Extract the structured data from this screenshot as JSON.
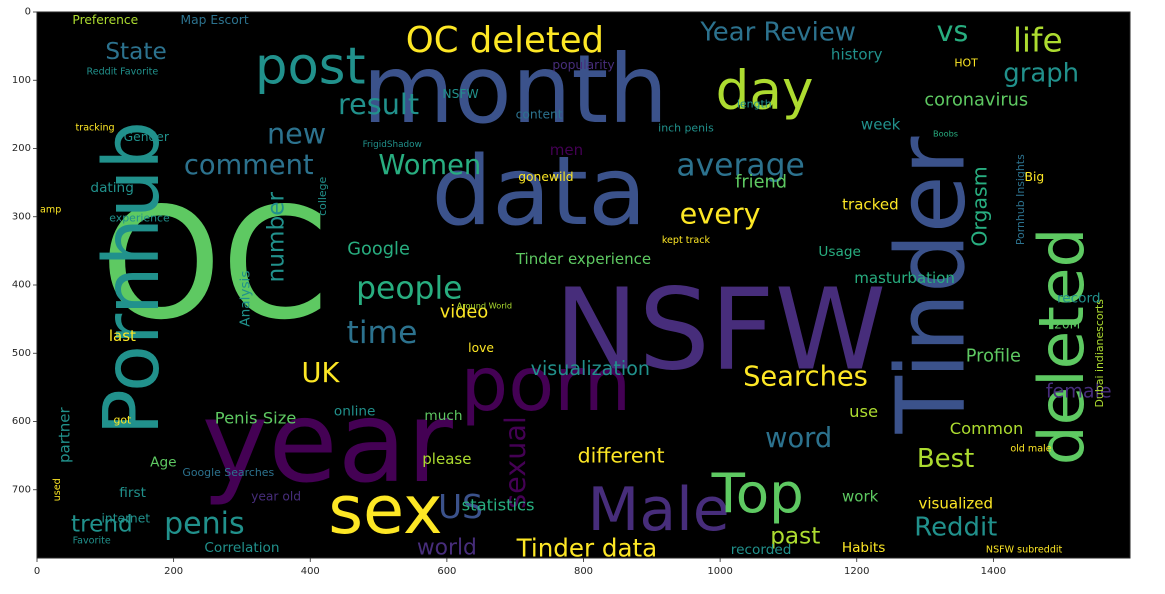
{
  "chart_data": {
    "type": "wordcloud-image",
    "title": "",
    "xlabel": "",
    "ylabel": "",
    "xlim": [
      0,
      1600
    ],
    "ylim": [
      800,
      0
    ],
    "xticks": [
      0,
      200,
      400,
      600,
      800,
      1000,
      1200,
      1400
    ],
    "yticks": [
      0,
      100,
      200,
      300,
      400,
      500,
      600,
      700
    ],
    "grid": false,
    "background": "#000000",
    "palette": [
      "#440154",
      "#472d7b",
      "#3b528b",
      "#2c728e",
      "#21918c",
      "#28ae80",
      "#5ec962",
      "#addc30",
      "#fde725"
    ],
    "words": [
      {
        "text": "OC",
        "x": 260,
        "y": 370,
        "size": 225,
        "color": "#5ec962",
        "rotate": 0
      },
      {
        "text": "year",
        "x": 425,
        "y": 630,
        "size": 165,
        "color": "#440154",
        "rotate": 0
      },
      {
        "text": "NSFW",
        "x": 1000,
        "y": 465,
        "size": 165,
        "color": "#472d7b",
        "rotate": 0
      },
      {
        "text": "Tinder",
        "x": 1310,
        "y": 400,
        "size": 138,
        "color": "#3b528b",
        "rotate": -90
      },
      {
        "text": "month",
        "x": 700,
        "y": 115,
        "size": 138,
        "color": "#3b528b",
        "rotate": 0
      },
      {
        "text": "data",
        "x": 735,
        "y": 262,
        "size": 140,
        "color": "#3b528b",
        "rotate": 0
      },
      {
        "text": "Pornhub",
        "x": 140,
        "y": 390,
        "size": 112,
        "color": "#21918c",
        "rotate": -90
      },
      {
        "text": "deleted",
        "x": 1500,
        "y": 490,
        "size": 92,
        "color": "#5ec962",
        "rotate": -90
      },
      {
        "text": "porn",
        "x": 745,
        "y": 545,
        "size": 110,
        "color": "#440154",
        "rotate": 0
      },
      {
        "text": "Male",
        "x": 910,
        "y": 730,
        "size": 88,
        "color": "#472d7b",
        "rotate": 0
      },
      {
        "text": "sex",
        "x": 510,
        "y": 730,
        "size": 98,
        "color": "#fde725",
        "rotate": 0
      },
      {
        "text": "post",
        "x": 400,
        "y": 80,
        "size": 75,
        "color": "#21918c",
        "rotate": 0
      },
      {
        "text": "day",
        "x": 1065,
        "y": 115,
        "size": 78,
        "color": "#addc30",
        "rotate": 0
      },
      {
        "text": "Top",
        "x": 1055,
        "y": 705,
        "size": 80,
        "color": "#5ec962",
        "rotate": 0
      },
      {
        "text": "OC deleted",
        "x": 685,
        "y": 42,
        "size": 52,
        "color": "#fde725",
        "rotate": 0
      },
      {
        "text": "Year Review",
        "x": 1085,
        "y": 30,
        "size": 38,
        "color": "#2c728e",
        "rotate": 0
      },
      {
        "text": "vs",
        "x": 1340,
        "y": 28,
        "size": 42,
        "color": "#28ae80",
        "rotate": 0
      },
      {
        "text": "life",
        "x": 1465,
        "y": 42,
        "size": 48,
        "color": "#addc30",
        "rotate": 0
      },
      {
        "text": "graph",
        "x": 1470,
        "y": 90,
        "size": 38,
        "color": "#21918c",
        "rotate": 0
      },
      {
        "text": "result",
        "x": 500,
        "y": 135,
        "size": 42,
        "color": "#21918c",
        "rotate": 0
      },
      {
        "text": "new",
        "x": 380,
        "y": 178,
        "size": 42,
        "color": "#2c728e",
        "rotate": 0
      },
      {
        "text": "State",
        "x": 145,
        "y": 58,
        "size": 34,
        "color": "#2c728e",
        "rotate": 0
      },
      {
        "text": "average",
        "x": 1030,
        "y": 225,
        "size": 46,
        "color": "#2c728e",
        "rotate": 0
      },
      {
        "text": "comment",
        "x": 310,
        "y": 225,
        "size": 40,
        "color": "#2c728e",
        "rotate": 0
      },
      {
        "text": "Women",
        "x": 575,
        "y": 225,
        "size": 40,
        "color": "#28ae80",
        "rotate": 0
      },
      {
        "text": "every",
        "x": 1000,
        "y": 295,
        "size": 42,
        "color": "#fde725",
        "rotate": 0
      },
      {
        "text": "people",
        "x": 545,
        "y": 405,
        "size": 46,
        "color": "#28ae80",
        "rotate": 0
      },
      {
        "text": "time",
        "x": 505,
        "y": 470,
        "size": 46,
        "color": "#2c728e",
        "rotate": 0
      },
      {
        "text": "number",
        "x": 350,
        "y": 330,
        "size": 34,
        "color": "#21918c",
        "rotate": -90
      },
      {
        "text": "Searches",
        "x": 1125,
        "y": 535,
        "size": 40,
        "color": "#fde725",
        "rotate": 0
      },
      {
        "text": "visualization",
        "x": 810,
        "y": 522,
        "size": 28,
        "color": "#21918c",
        "rotate": 0
      },
      {
        "text": "UK",
        "x": 415,
        "y": 530,
        "size": 40,
        "color": "#fde725",
        "rotate": 0
      },
      {
        "text": "sexual",
        "x": 700,
        "y": 660,
        "size": 42,
        "color": "#440154",
        "rotate": -90
      },
      {
        "text": "word",
        "x": 1115,
        "y": 625,
        "size": 40,
        "color": "#2c728e",
        "rotate": 0
      },
      {
        "text": "Best",
        "x": 1330,
        "y": 655,
        "size": 38,
        "color": "#addc30",
        "rotate": 0
      },
      {
        "text": "penis",
        "x": 245,
        "y": 750,
        "size": 44,
        "color": "#21918c",
        "rotate": 0
      },
      {
        "text": "US",
        "x": 620,
        "y": 725,
        "size": 48,
        "color": "#3b528b",
        "rotate": 0
      },
      {
        "text": "Reddit",
        "x": 1345,
        "y": 755,
        "size": 38,
        "color": "#21918c",
        "rotate": 0
      },
      {
        "text": "Tinder data",
        "x": 805,
        "y": 785,
        "size": 36,
        "color": "#fde725",
        "rotate": 0
      },
      {
        "text": "world",
        "x": 600,
        "y": 785,
        "size": 32,
        "color": "#472d7b",
        "rotate": 0
      },
      {
        "text": "trend",
        "x": 95,
        "y": 750,
        "size": 34,
        "color": "#21918c",
        "rotate": 0
      },
      {
        "text": "past",
        "x": 1110,
        "y": 768,
        "size": 34,
        "color": "#addc30",
        "rotate": 0
      },
      {
        "text": "different",
        "x": 855,
        "y": 650,
        "size": 30,
        "color": "#fde725",
        "rotate": 0
      },
      {
        "text": "Orgasm",
        "x": 1380,
        "y": 285,
        "size": 30,
        "color": "#28ae80",
        "rotate": -90
      },
      {
        "text": "coronavirus",
        "x": 1375,
        "y": 130,
        "size": 26,
        "color": "#5ec962",
        "rotate": 0
      },
      {
        "text": "Google",
        "x": 500,
        "y": 348,
        "size": 26,
        "color": "#28ae80",
        "rotate": 0
      },
      {
        "text": "Tinder experience",
        "x": 800,
        "y": 362,
        "size": 22,
        "color": "#5ec962",
        "rotate": 0
      },
      {
        "text": "video",
        "x": 625,
        "y": 440,
        "size": 26,
        "color": "#fde725",
        "rotate": 0
      },
      {
        "text": "Profile",
        "x": 1400,
        "y": 505,
        "size": 26,
        "color": "#5ec962",
        "rotate": 0
      },
      {
        "text": "female",
        "x": 1525,
        "y": 555,
        "size": 28,
        "color": "#472d7b",
        "rotate": 0
      },
      {
        "text": "Penis Size",
        "x": 320,
        "y": 595,
        "size": 24,
        "color": "#5ec962",
        "rotate": 0
      },
      {
        "text": "statistics",
        "x": 675,
        "y": 722,
        "size": 24,
        "color": "#28ae80",
        "rotate": 0
      },
      {
        "text": "Correlation",
        "x": 300,
        "y": 785,
        "size": 20,
        "color": "#21918c",
        "rotate": 0
      },
      {
        "text": "Habits",
        "x": 1210,
        "y": 785,
        "size": 20,
        "color": "#fde725",
        "rotate": 0
      },
      {
        "text": "recorded",
        "x": 1060,
        "y": 788,
        "size": 20,
        "color": "#21918c",
        "rotate": 0
      },
      {
        "text": "use",
        "x": 1210,
        "y": 585,
        "size": 24,
        "color": "#addc30",
        "rotate": 0
      },
      {
        "text": "please",
        "x": 600,
        "y": 655,
        "size": 22,
        "color": "#addc30",
        "rotate": 0
      },
      {
        "text": "work",
        "x": 1205,
        "y": 710,
        "size": 22,
        "color": "#5ec962",
        "rotate": 0
      },
      {
        "text": "visualized",
        "x": 1345,
        "y": 720,
        "size": 22,
        "color": "#fde725",
        "rotate": 0
      },
      {
        "text": "Common",
        "x": 1390,
        "y": 610,
        "size": 24,
        "color": "#addc30",
        "rotate": 0
      },
      {
        "text": "Analysis",
        "x": 305,
        "y": 420,
        "size": 20,
        "color": "#21918c",
        "rotate": -90
      },
      {
        "text": "masturbation",
        "x": 1270,
        "y": 390,
        "size": 22,
        "color": "#28ae80",
        "rotate": 0
      },
      {
        "text": "week",
        "x": 1235,
        "y": 165,
        "size": 22,
        "color": "#21918c",
        "rotate": 0
      },
      {
        "text": "history",
        "x": 1200,
        "y": 62,
        "size": 22,
        "color": "#21918c",
        "rotate": 0
      },
      {
        "text": "Preference",
        "x": 100,
        "y": 12,
        "size": 18,
        "color": "#addc30",
        "rotate": 0
      },
      {
        "text": "Map Escort",
        "x": 260,
        "y": 12,
        "size": 18,
        "color": "#2c728e",
        "rotate": 0
      },
      {
        "text": "Gender",
        "x": 160,
        "y": 183,
        "size": 18,
        "color": "#21918c",
        "rotate": 0
      },
      {
        "text": "dating",
        "x": 110,
        "y": 258,
        "size": 20,
        "color": "#21918c",
        "rotate": 0
      },
      {
        "text": "friend",
        "x": 1060,
        "y": 250,
        "size": 26,
        "color": "#5ec962",
        "rotate": 0
      },
      {
        "text": "tracked",
        "x": 1220,
        "y": 282,
        "size": 22,
        "color": "#fde725",
        "rotate": 0
      },
      {
        "text": "Pornhub Insights",
        "x": 1440,
        "y": 275,
        "size": 16,
        "color": "#2c728e",
        "rotate": -90
      },
      {
        "text": "Dubai indianescorts",
        "x": 1555,
        "y": 500,
        "size": 16,
        "color": "#addc30",
        "rotate": -90
      },
      {
        "text": "partner",
        "x": 40,
        "y": 620,
        "size": 22,
        "color": "#21918c",
        "rotate": -90
      },
      {
        "text": "Age",
        "x": 185,
        "y": 660,
        "size": 20,
        "color": "#5ec962",
        "rotate": 0
      },
      {
        "text": "first",
        "x": 140,
        "y": 705,
        "size": 20,
        "color": "#21918c",
        "rotate": 0
      },
      {
        "text": "internet",
        "x": 130,
        "y": 742,
        "size": 18,
        "color": "#21918c",
        "rotate": 0
      },
      {
        "text": "year old",
        "x": 350,
        "y": 710,
        "size": 18,
        "color": "#472d7b",
        "rotate": 0
      },
      {
        "text": "online",
        "x": 465,
        "y": 585,
        "size": 20,
        "color": "#21918c",
        "rotate": 0
      },
      {
        "text": "much",
        "x": 595,
        "y": 592,
        "size": 20,
        "color": "#5ec962",
        "rotate": 0
      },
      {
        "text": "men",
        "x": 775,
        "y": 202,
        "size": 22,
        "color": "#440154",
        "rotate": 0
      },
      {
        "text": "gonewild",
        "x": 745,
        "y": 242,
        "size": 18,
        "color": "#fde725",
        "rotate": 0
      },
      {
        "text": "record",
        "x": 1525,
        "y": 420,
        "size": 20,
        "color": "#21918c",
        "rotate": 0
      },
      {
        "text": "last",
        "x": 125,
        "y": 475,
        "size": 22,
        "color": "#fde725",
        "rotate": 0
      },
      {
        "text": "love",
        "x": 650,
        "y": 492,
        "size": 18,
        "color": "#fde725",
        "rotate": 0
      },
      {
        "text": "Usage",
        "x": 1175,
        "y": 352,
        "size": 20,
        "color": "#28ae80",
        "rotate": 0
      },
      {
        "text": "popularity",
        "x": 800,
        "y": 78,
        "size": 18,
        "color": "#472d7b",
        "rotate": 0
      },
      {
        "text": "content",
        "x": 735,
        "y": 150,
        "size": 18,
        "color": "#2c728e",
        "rotate": 0
      },
      {
        "text": "NSFW",
        "x": 620,
        "y": 120,
        "size": 18,
        "color": "#21918c",
        "rotate": 0
      },
      {
        "text": "inch penis",
        "x": 950,
        "y": 170,
        "size": 16,
        "color": "#21918c",
        "rotate": 0
      },
      {
        "text": "length",
        "x": 1050,
        "y": 135,
        "size": 16,
        "color": "#21918c",
        "rotate": 0
      },
      {
        "text": "HOT",
        "x": 1360,
        "y": 75,
        "size": 16,
        "color": "#fde725",
        "rotate": 0
      },
      {
        "text": "Google Searches",
        "x": 280,
        "y": 675,
        "size": 16,
        "color": "#2c728e",
        "rotate": 0
      },
      {
        "text": "NSFW subreddit",
        "x": 1445,
        "y": 788,
        "size": 14,
        "color": "#fde725",
        "rotate": 0
      },
      {
        "text": "old male",
        "x": 1455,
        "y": 640,
        "size": 14,
        "color": "#fde725",
        "rotate": 0
      },
      {
        "text": "kept track",
        "x": 950,
        "y": 335,
        "size": 14,
        "color": "#fde725",
        "rotate": 0
      },
      {
        "text": "Favorite",
        "x": 80,
        "y": 775,
        "size": 14,
        "color": "#21918c",
        "rotate": 0
      },
      {
        "text": "Reddit Favorite",
        "x": 125,
        "y": 88,
        "size": 14,
        "color": "#21918c",
        "rotate": 0
      },
      {
        "text": "used",
        "x": 30,
        "y": 700,
        "size": 14,
        "color": "#fde725",
        "rotate": -90
      },
      {
        "text": "amp",
        "x": 20,
        "y": 290,
        "size": 14,
        "color": "#fde725",
        "rotate": 0
      },
      {
        "text": "got",
        "x": 125,
        "y": 598,
        "size": 16,
        "color": "#fde725",
        "rotate": 0
      },
      {
        "text": "20M",
        "x": 1508,
        "y": 458,
        "size": 18,
        "color": "#5ec962",
        "rotate": 0
      },
      {
        "text": "Big",
        "x": 1460,
        "y": 242,
        "size": 18,
        "color": "#fde725",
        "rotate": 0
      },
      {
        "text": "experience",
        "x": 150,
        "y": 302,
        "size": 16,
        "color": "#21918c",
        "rotate": 0
      },
      {
        "text": "college",
        "x": 418,
        "y": 270,
        "size": 16,
        "color": "#21918c",
        "rotate": -90
      },
      {
        "text": "tracking",
        "x": 85,
        "y": 170,
        "size": 14,
        "color": "#fde725",
        "rotate": 0
      },
      {
        "text": "FrigidShadow",
        "x": 520,
        "y": 195,
        "size": 13,
        "color": "#21918c",
        "rotate": 0
      },
      {
        "text": "Around World",
        "x": 655,
        "y": 430,
        "size": 12,
        "color": "#addc30",
        "rotate": 0
      },
      {
        "text": "Boobs",
        "x": 1330,
        "y": 178,
        "size": 12,
        "color": "#28ae80",
        "rotate": 0
      }
    ]
  }
}
